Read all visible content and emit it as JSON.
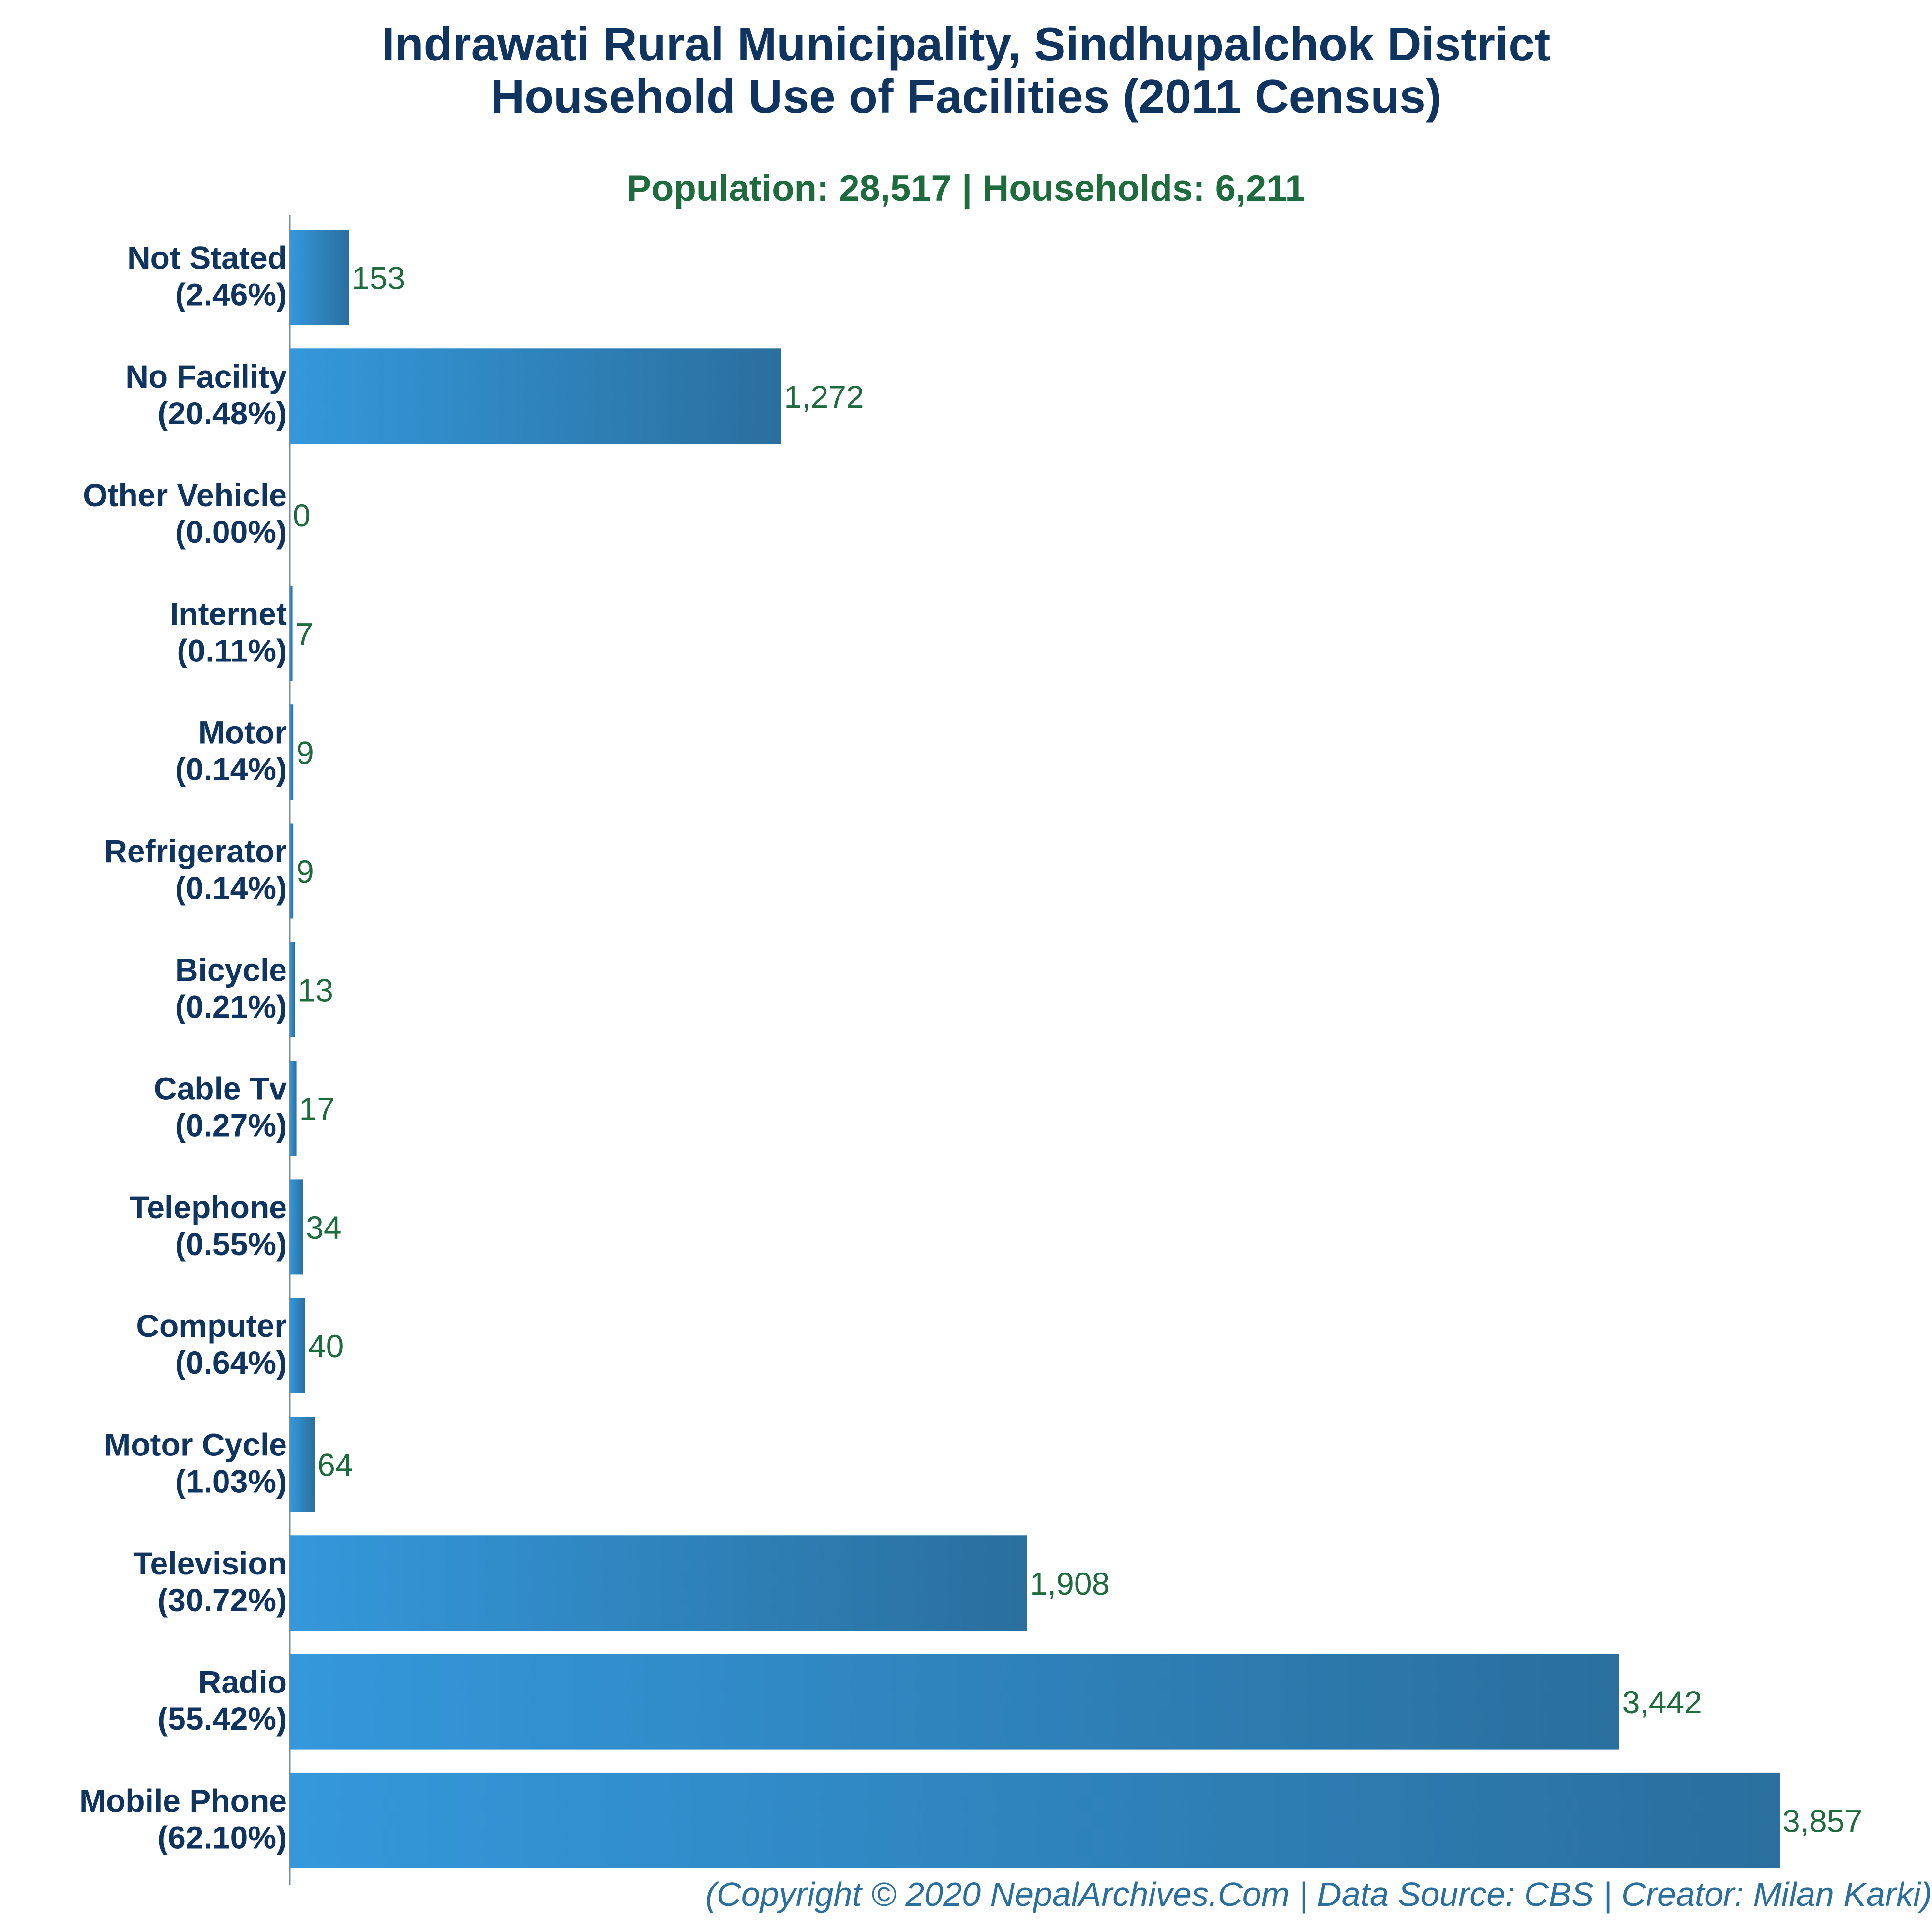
{
  "chart_data": {
    "type": "bar",
    "orientation": "horizontal",
    "title": "Indrawati Rural Municipality, Sindhupalchok District",
    "subtitle": "Household Use of Facilities (2011 Census)",
    "summary": "Population: 28,517 | Households: 6,211",
    "categories": [
      "Not Stated",
      "No Facility",
      "Other Vehicle",
      "Internet",
      "Motor",
      "Refrigerator",
      "Bicycle",
      "Cable Tv",
      "Telephone",
      "Computer",
      "Motor Cycle",
      "Television",
      "Radio",
      "Mobile Phone"
    ],
    "percentages": [
      "(2.46%)",
      "(20.48%)",
      "(0.00%)",
      "(0.11%)",
      "(0.14%)",
      "(0.14%)",
      "(0.21%)",
      "(0.27%)",
      "(0.55%)",
      "(0.64%)",
      "(1.03%)",
      "(30.72%)",
      "(55.42%)",
      "(62.10%)"
    ],
    "values": [
      153,
      1272,
      0,
      7,
      9,
      9,
      13,
      17,
      34,
      40,
      64,
      1908,
      3442,
      3857
    ],
    "value_labels": [
      "153",
      "1,272",
      "0",
      "7",
      "9",
      "9",
      "13",
      "17",
      "34",
      "40",
      "64",
      "1,908",
      "3,442",
      "3,857"
    ],
    "xlim": [
      0,
      3857
    ],
    "grid": false,
    "legend": "none",
    "colors": {
      "bar_start": "#3498db",
      "bar_end": "#2a6f9e",
      "category_text": "#0f3460",
      "value_text": "#1e6b3e",
      "title": "#0f3460",
      "subtitle": "#1e6b3e",
      "footer": "#2a6f9e",
      "axis": "#7a8c9a"
    }
  },
  "footer": "(Copyright © 2020 NepalArchives.Com | Data Source: CBS | Creator: Milan Karki)"
}
